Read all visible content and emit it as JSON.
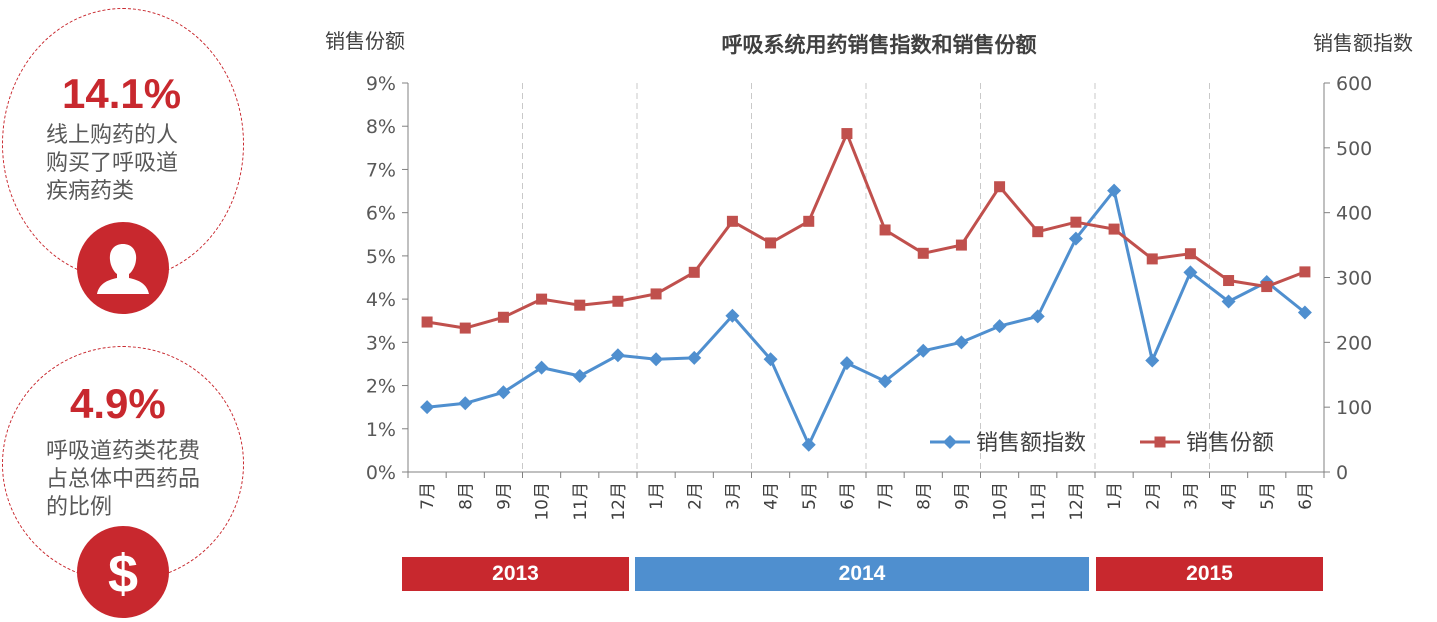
{
  "stats": [
    {
      "value": "14.1%",
      "description": "线上购药的人\n购买了呼吸道\n疾病药类",
      "icon": "person-icon"
    },
    {
      "value": "4.9%",
      "description": "呼吸道药类花费\n占总体中西药品\n的比例",
      "icon": "dollar-icon"
    }
  ],
  "years": [
    {
      "label": "2013",
      "color": "#c8282e"
    },
    {
      "label": "2014",
      "color": "#4f8fcf"
    },
    {
      "label": "2015",
      "color": "#c8282e"
    }
  ],
  "chart_data": {
    "type": "line",
    "title": "呼吸系统用药销售指数和销售份额",
    "left_axis_label": "销售份额",
    "right_axis_label": "销售额指数",
    "categories": [
      "7月",
      "8月",
      "9月",
      "10月",
      "11月",
      "12月",
      "1月",
      "2月",
      "3月",
      "4月",
      "5月",
      "6月",
      "7月",
      "8月",
      "9月",
      "10月",
      "11月",
      "12月",
      "1月",
      "2月",
      "3月",
      "4月",
      "5月",
      "6月"
    ],
    "left_ylim": [
      0,
      9
    ],
    "left_ticks": [
      "0%",
      "1%",
      "2%",
      "3%",
      "4%",
      "5%",
      "6%",
      "7%",
      "8%",
      "9%"
    ],
    "right_ylim": [
      0,
      600
    ],
    "right_ticks": [
      "0",
      "100",
      "200",
      "300",
      "400",
      "500",
      "600"
    ],
    "legend_position": "bottom-right",
    "series": [
      {
        "name": "销售额指数",
        "axis": "right",
        "color": "#4f8fcf",
        "marker": "diamond",
        "values": [
          100,
          106,
          123,
          161,
          148,
          180,
          174,
          176,
          241,
          174,
          42,
          168,
          140,
          187,
          200,
          225,
          240,
          360,
          434,
          172,
          308,
          263,
          293,
          246
        ]
      },
      {
        "name": "销售份额",
        "axis": "left",
        "color": "#c0504d",
        "marker": "square",
        "values": [
          3.47,
          3.33,
          3.58,
          4.0,
          3.86,
          3.95,
          4.12,
          4.62,
          5.8,
          5.3,
          5.8,
          7.83,
          5.6,
          5.06,
          5.25,
          6.6,
          5.56,
          5.78,
          5.62,
          4.93,
          5.05,
          4.43,
          4.29,
          4.63
        ]
      }
    ]
  }
}
